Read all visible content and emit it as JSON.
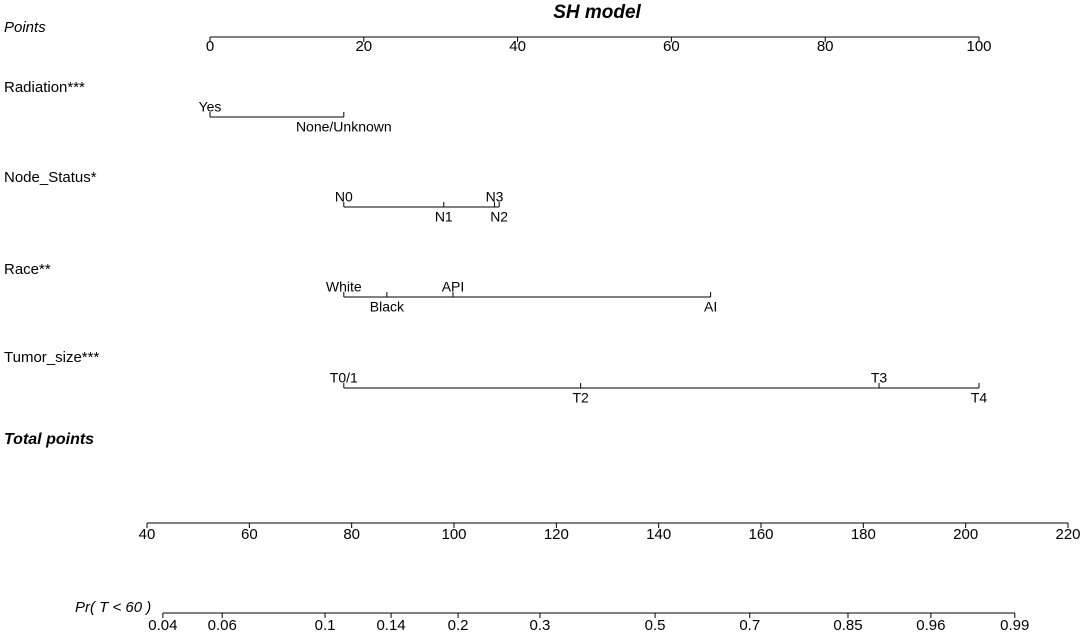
{
  "chart_data": {
    "type": "nomogram",
    "title": "SH model",
    "color": "#000000",
    "points_axis": {
      "label": "Points",
      "lim": [
        0,
        100
      ],
      "ticks": [
        0,
        20,
        40,
        60,
        80,
        100
      ]
    },
    "variables": [
      {
        "name": "Radiation***",
        "levels": [
          {
            "label": "Yes",
            "points": 0
          },
          {
            "label": "None/Unknown",
            "points": 17.4
          }
        ]
      },
      {
        "name": "Node_Status*",
        "levels": [
          {
            "label": "N0",
            "points": 17.4
          },
          {
            "label": "N1",
            "points": 30.4
          },
          {
            "label": "N3",
            "points": 37.0
          },
          {
            "label": "N2",
            "points": 37.6
          }
        ]
      },
      {
        "name": "Race**",
        "levels": [
          {
            "label": "White",
            "points": 17.4
          },
          {
            "label": "Black",
            "points": 23.0
          },
          {
            "label": "API",
            "points": 31.6
          },
          {
            "label": "AI",
            "points": 65.1
          }
        ]
      },
      {
        "name": "Tumor_size***",
        "levels": [
          {
            "label": "T0/1",
            "points": 17.4
          },
          {
            "label": "T2",
            "points": 48.2
          },
          {
            "label": "T3",
            "points": 87.0
          },
          {
            "label": "T4",
            "points": 100
          }
        ]
      }
    ],
    "total_points_axis": {
      "label": "Total points",
      "lim": [
        40,
        220
      ],
      "ticks": [
        40,
        60,
        80,
        100,
        120,
        140,
        160,
        180,
        200,
        220
      ]
    },
    "probability_axis": {
      "label": "Pr( T < 60 )",
      "probabilities": [
        0.04,
        0.06,
        0.1,
        0.14,
        0.2,
        0.3,
        0.5,
        0.7,
        0.85,
        0.96,
        0.99
      ],
      "total_points": [
        43.1,
        54.7,
        74.8,
        87.7,
        100.8,
        116.8,
        139.3,
        157.8,
        177.0,
        193.2,
        209.6
      ]
    }
  }
}
